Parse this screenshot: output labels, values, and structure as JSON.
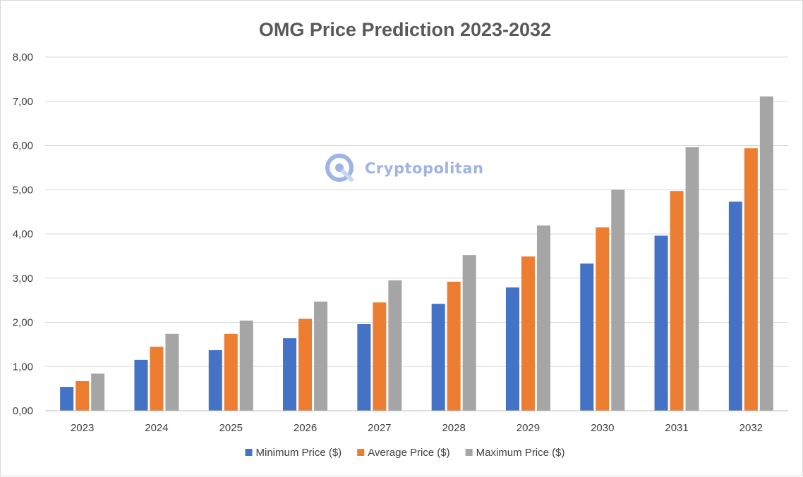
{
  "chart_data": {
    "type": "bar",
    "title": "OMG Price Prediction 2023-2032",
    "xlabel": "",
    "ylabel": "",
    "categories": [
      "2023",
      "2024",
      "2025",
      "2026",
      "2027",
      "2028",
      "2029",
      "2030",
      "2031",
      "2032"
    ],
    "series": [
      {
        "name": "Minimum Price ($)",
        "color": "#4472c4",
        "values": [
          0.54,
          1.15,
          1.37,
          1.64,
          1.96,
          2.42,
          2.79,
          3.33,
          3.96,
          4.73
        ]
      },
      {
        "name": "Average Price ($)",
        "color": "#ed7d31",
        "values": [
          0.67,
          1.45,
          1.74,
          2.08,
          2.45,
          2.92,
          3.49,
          4.15,
          4.97,
          5.94
        ]
      },
      {
        "name": "Maximum Price ($)",
        "color": "#a5a5a5",
        "values": [
          0.84,
          1.74,
          2.04,
          2.47,
          2.95,
          3.52,
          4.19,
          5.0,
          5.96,
          7.11
        ]
      }
    ],
    "ylim": [
      0,
      8
    ],
    "yticks": [
      "0,00",
      "1,00",
      "2,00",
      "3,00",
      "4,00",
      "5,00",
      "6,00",
      "7,00",
      "8,00"
    ],
    "grid": true,
    "legend_position": "bottom"
  },
  "watermark": {
    "text": "Cryptopolitan",
    "logo_icon": "cryptopolitan-logo-icon",
    "color": "#9fb4e3"
  }
}
